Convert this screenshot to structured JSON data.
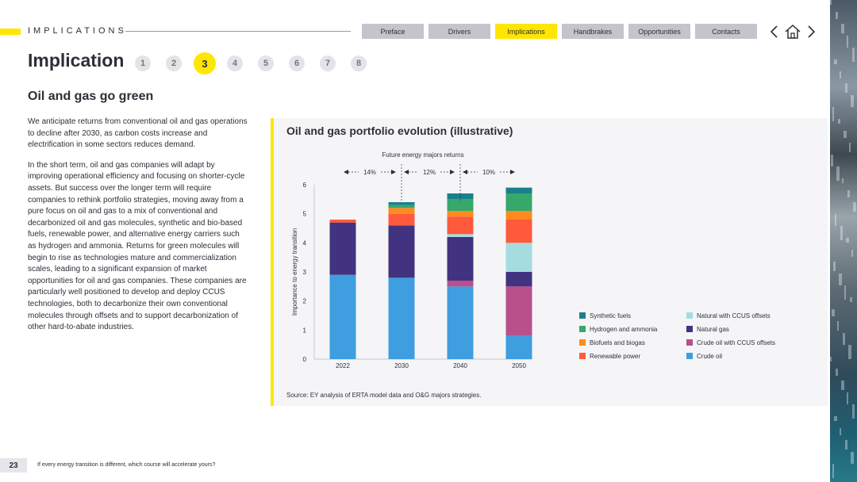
{
  "header": {
    "section_label": "IMPLICATIONS",
    "nav_tabs": [
      {
        "label": "Preface",
        "active": false
      },
      {
        "label": "Drivers",
        "active": false
      },
      {
        "label": "Implications",
        "active": true
      },
      {
        "label": "Handbrakes",
        "active": false
      },
      {
        "label": "Opportunities",
        "active": false
      },
      {
        "label": "Contacts",
        "active": false
      }
    ],
    "icons": [
      "chevron-left-icon",
      "home-icon",
      "chevron-right-icon"
    ]
  },
  "page": {
    "title": "Implication",
    "pager": [
      "1",
      "2",
      "3",
      "4",
      "5",
      "6",
      "7",
      "8"
    ],
    "pager_active": "3",
    "subtitle": "Oil and gas go green",
    "paragraphs": [
      "We anticipate returns from conventional oil and gas operations to decline after 2030, as carbon costs increase and electrification in some sectors reduces demand.",
      "In the short term, oil and gas companies will adapt by improving operational efficiency and focusing on shorter-cycle assets. But success over the longer term will require companies to rethink portfolio strategies, moving away from a pure focus on oil and gas to a mix of conventional and decarbonized oil and gas molecules, synthetic and bio-based fuels, renewable power, and alternative energy carriers such as hydrogen and ammonia. Returns for green molecules will begin to rise as technologies mature and commercialization scales, leading to a significant expansion of market opportunities for oil and gas companies. These companies are particularly well positioned to develop and deploy CCUS technologies, both to decarbonize their own conventional molecules through offsets and to support decarbonization of other hard-to-abate industries."
    ]
  },
  "chart_data": {
    "type": "bar",
    "stacked": true,
    "title": "Oil and gas portfolio evolution (illustrative)",
    "annotation_title": "Future energy majors returns",
    "returns": [
      "14%",
      "12%",
      "10%"
    ],
    "ylabel": "Importance to energy transition",
    "xlabel": "",
    "ylim": [
      0,
      6
    ],
    "yticks": [
      "0",
      "1",
      "2",
      "3",
      "4",
      "5",
      "6"
    ],
    "categories": [
      "2022",
      "2030",
      "2040",
      "2050"
    ],
    "grid": false,
    "legend_position": "right",
    "series": [
      {
        "name": "Crude oil",
        "color": "#3e9ee0",
        "values": [
          2.9,
          2.8,
          2.5,
          0.8
        ]
      },
      {
        "name": "Crude oil with CCUS offsets",
        "color": "#b9508c",
        "values": [
          0,
          0,
          0.2,
          1.7
        ]
      },
      {
        "name": "Natural gas",
        "color": "#41337f",
        "values": [
          1.8,
          1.8,
          1.5,
          0.5
        ]
      },
      {
        "name": "Natural with CCUS offsets",
        "color": "#a5dce0",
        "values": [
          0,
          0,
          0.1,
          1.0
        ]
      },
      {
        "name": "Renewable power",
        "color": "#ff5a3c",
        "values": [
          0.1,
          0.4,
          0.6,
          0.8
        ]
      },
      {
        "name": "Biofuels and biogas",
        "color": "#ff8a20",
        "values": [
          0,
          0.2,
          0.2,
          0.3
        ]
      },
      {
        "name": "Hydrogen and ammonia",
        "color": "#36a86a",
        "values": [
          0,
          0.1,
          0.4,
          0.6
        ]
      },
      {
        "name": "Synthetic fuels",
        "color": "#1c7f8c",
        "values": [
          0,
          0.1,
          0.2,
          0.2
        ]
      }
    ],
    "legend_order": [
      "Synthetic fuels",
      "Natural with CCUS offsets",
      "Hydrogen and ammonia",
      "Natural gas",
      "Biofuels and biogas",
      "Crude oil with CCUS offsets",
      "Renewable power",
      "Crude oil"
    ],
    "source": "Source: EY analysis of ERTA model data and O&G majors strategies."
  },
  "footer": {
    "page_number": "23",
    "tagline": "If every energy transition is different, which course will accelerate yours?"
  }
}
